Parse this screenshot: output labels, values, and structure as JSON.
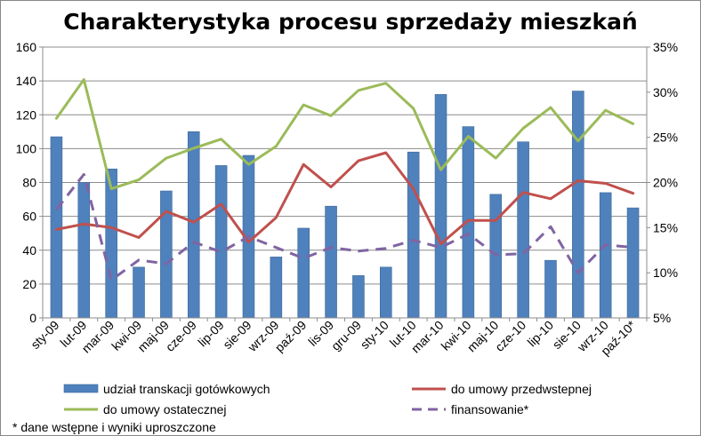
{
  "chart_data": {
    "type": "bar",
    "title": "Charakterystyka procesu sprzedaży mieszkań",
    "categories": [
      "sty-09",
      "lut-09",
      "mar-09",
      "kwi-09",
      "maj-09",
      "cze-09",
      "lip-09",
      "sie-09",
      "wrz-09",
      "paź-09",
      "lis-09",
      "gru-09",
      "sty-10",
      "lut-10",
      "mar-10",
      "kwi-10",
      "maj-10",
      "cze-10",
      "lip-10",
      "sie-10",
      "wrz-10",
      "paź-10*"
    ],
    "y_left": {
      "ylim": [
        0,
        160
      ],
      "ticks": [
        "0",
        "20",
        "40",
        "60",
        "80",
        "100",
        "120",
        "140",
        "160"
      ]
    },
    "y_right": {
      "ylim": [
        5,
        35
      ],
      "ticks": [
        "5%",
        "10%",
        "15%",
        "20%",
        "25%",
        "30%",
        "35%"
      ]
    },
    "grid": true,
    "legend_position": "bottom",
    "series": [
      {
        "name": "udział transkacji gotówkowych",
        "kind": "bar",
        "axis": "left",
        "color": "#4f81bd",
        "values": [
          107,
          80,
          88,
          30,
          75,
          110,
          90,
          96,
          36,
          53,
          66,
          25,
          30,
          98,
          132,
          113,
          73,
          104,
          34,
          134,
          74,
          65
        ]
      },
      {
        "name": "do umowy przedwstepnej",
        "kind": "line",
        "axis": "right",
        "color": "#c0504d",
        "dash": false,
        "values": [
          14.8,
          15.4,
          15.0,
          13.9,
          16.8,
          15.6,
          17.6,
          13.4,
          16.1,
          22.0,
          19.5,
          22.4,
          23.3,
          19.3,
          13.2,
          15.8,
          15.8,
          18.9,
          18.2,
          20.2,
          19.9,
          18.8
        ]
      },
      {
        "name": "do umowy ostatecznej",
        "kind": "line",
        "axis": "right",
        "color": "#9bbb59",
        "dash": false,
        "values": [
          27.1,
          31.4,
          19.3,
          20.3,
          22.7,
          23.8,
          24.8,
          22.0,
          24.0,
          28.6,
          27.4,
          30.2,
          31.0,
          28.2,
          21.4,
          25.1,
          22.7,
          26.0,
          28.3,
          24.6,
          28.0,
          26.5
        ]
      },
      {
        "name": "finansowanie*",
        "kind": "line",
        "axis": "right",
        "color": "#8064a2",
        "dash": true,
        "values": [
          17.0,
          20.9,
          9.2,
          11.4,
          11.0,
          13.4,
          12.3,
          14.0,
          12.8,
          11.6,
          12.8,
          12.4,
          12.7,
          13.6,
          12.8,
          14.3,
          12.0,
          12.1,
          15.1,
          10.0,
          13.1,
          12.8
        ]
      }
    ],
    "footnote": "* dane wstępne i wyniki uproszczone"
  }
}
